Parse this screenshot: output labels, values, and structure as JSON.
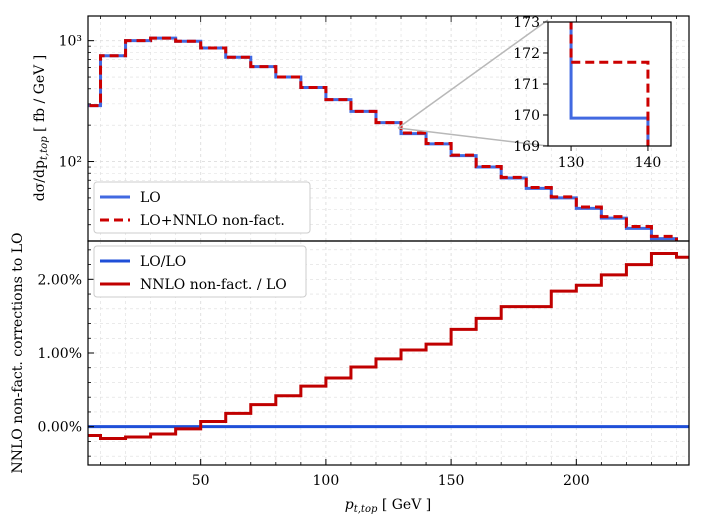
{
  "chart_data": [
    {
      "type": "line",
      "panel": "top",
      "yscale": "log",
      "ylabel": "dσ/dp_t,top [ fb / GeV ]",
      "xlim": [
        5,
        245
      ],
      "ylim": [
        22,
        1600
      ],
      "bin_edges": [
        0,
        10,
        20,
        30,
        40,
        50,
        60,
        70,
        80,
        90,
        100,
        110,
        120,
        130,
        140,
        150,
        160,
        170,
        180,
        190,
        200,
        210,
        220,
        230,
        240,
        250
      ],
      "series": [
        {
          "name": "LO",
          "color": "#4169e1",
          "values": [
            290,
            750,
            1000,
            1050,
            990,
            870,
            730,
            610,
            500,
            410,
            325,
            260,
            210,
            170,
            140,
            112,
            90,
            73,
            60,
            50,
            41,
            34,
            28,
            23,
            21
          ]
        },
        {
          "name": "LO+NNLO non-fact.",
          "color": "#cc0000",
          "values": [
            290,
            750,
            1000,
            1050,
            990,
            870,
            730,
            610,
            500,
            410,
            325,
            260,
            210,
            172,
            141,
            113,
            91,
            74,
            61,
            51,
            42,
            35,
            29,
            24,
            21.5
          ]
        }
      ],
      "yticks": [
        {
          "value": 100,
          "label": "10²"
        },
        {
          "value": 1000,
          "label": "10³"
        }
      ],
      "legend": {
        "position": "lower-left",
        "entries": [
          "LO",
          "LO+NNLO non-fact."
        ]
      }
    },
    {
      "type": "line",
      "panel": "inset",
      "xlim": [
        127,
        143
      ],
      "ylim": [
        169,
        173
      ],
      "xticks": [
        "130",
        "140"
      ],
      "yticks": [
        "169",
        "170",
        "171",
        "172",
        "173"
      ],
      "series": [
        {
          "name": "LO",
          "color": "#4169e1",
          "points": [
            [
              130,
              173.5
            ],
            [
              130,
              169.9
            ],
            [
              140,
              169.9
            ],
            [
              140,
              168.5
            ]
          ]
        },
        {
          "name": "LO+NNLO non-fact.",
          "color": "#cc0000",
          "points": [
            [
              130,
              173.5
            ],
            [
              130,
              171.7
            ],
            [
              140,
              171.7
            ],
            [
              140,
              168.5
            ]
          ]
        }
      ]
    },
    {
      "type": "line",
      "panel": "bottom",
      "xlabel": "p_t,top [ GeV ]",
      "ylabel": "NNLO non-fact. corrections to LO",
      "xlim": [
        5,
        245
      ],
      "ylim": [
        -0.52,
        2.52
      ],
      "bin_edges": [
        0,
        10,
        20,
        30,
        40,
        50,
        60,
        70,
        80,
        90,
        100,
        110,
        120,
        130,
        140,
        150,
        160,
        170,
        180,
        190,
        200,
        210,
        220,
        230,
        240,
        250
      ],
      "series": [
        {
          "name": "LO/LO",
          "color": "#1f4fd8",
          "values": [
            0,
            0,
            0,
            0,
            0,
            0,
            0,
            0,
            0,
            0,
            0,
            0,
            0,
            0,
            0,
            0,
            0,
            0,
            0,
            0,
            0,
            0,
            0,
            0,
            0
          ]
        },
        {
          "name": "NNLO non-fact. / LO",
          "color": "#c00000",
          "values": [
            -0.12,
            -0.16,
            -0.14,
            -0.1,
            -0.03,
            0.07,
            0.18,
            0.3,
            0.42,
            0.55,
            0.66,
            0.81,
            0.92,
            1.04,
            1.12,
            1.32,
            1.47,
            1.63,
            1.63,
            1.84,
            1.92,
            2.06,
            2.2,
            2.35,
            2.3
          ]
        }
      ],
      "xticks": [
        "50",
        "100",
        "150",
        "200"
      ],
      "yticks": [
        {
          "value": 0,
          "label": "0.00%"
        },
        {
          "value": 1,
          "label": "1.00%"
        },
        {
          "value": 2,
          "label": "2.00%"
        }
      ],
      "legend": {
        "position": "upper-left",
        "entries": [
          "LO/LO",
          "NNLO non-fact. / LO"
        ]
      }
    }
  ]
}
